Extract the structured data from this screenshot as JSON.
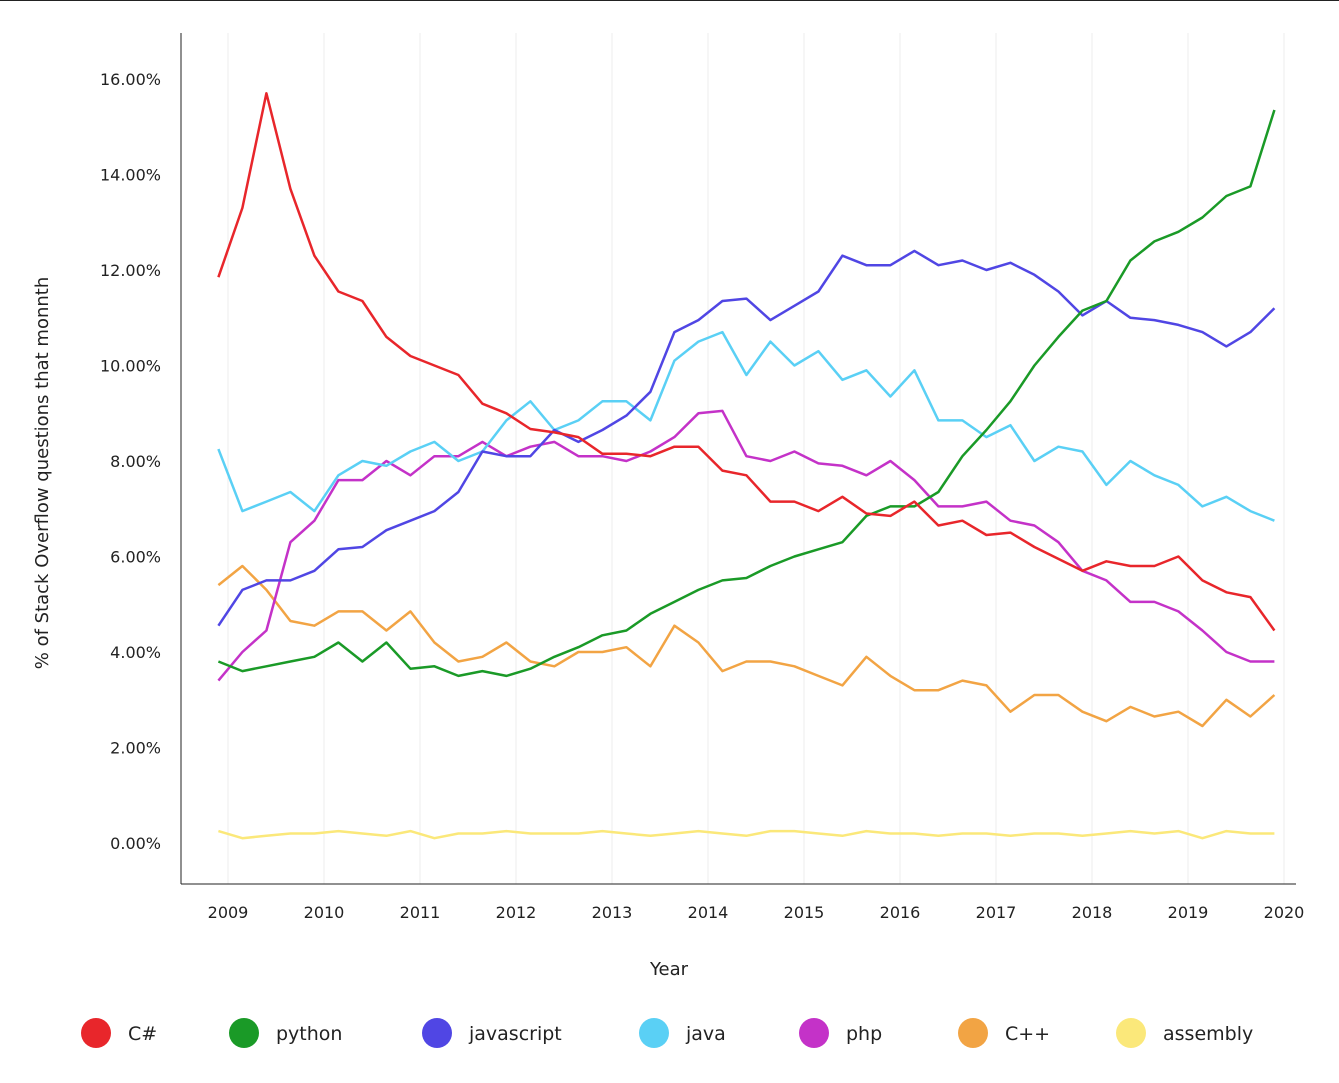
{
  "chart_data": {
    "type": "line",
    "title": "",
    "xlabel": "Year",
    "ylabel": "% of Stack Overflow questions that monnth",
    "ylim": [
      -0.8,
      17
    ],
    "xlim": [
      2008.55,
      2020.1
    ],
    "y_ticks": [
      0,
      2,
      4,
      6,
      8,
      10,
      12,
      14,
      16
    ],
    "y_tick_labels": [
      "0.00%",
      "2.00%",
      "4.00%",
      "6.00%",
      "8.00%",
      "10.00%",
      "12.00%",
      "14.00%",
      "16.00%"
    ],
    "x_ticks": [
      2009,
      2010,
      2011,
      2012,
      2013,
      2014,
      2015,
      2016,
      2017,
      2018,
      2019,
      2020
    ],
    "x_tick_labels": [
      "2009",
      "2010",
      "2011",
      "2012",
      "2013",
      "2014",
      "2015",
      "2016",
      "2017",
      "2018",
      "2019",
      "2020"
    ],
    "grid": "vertical",
    "legend_position": "bottom",
    "x": [
      2008.9,
      2009.15,
      2009.4,
      2009.65,
      2009.9,
      2010.15,
      2010.4,
      2010.65,
      2010.9,
      2011.15,
      2011.4,
      2011.65,
      2011.9,
      2012.15,
      2012.4,
      2012.65,
      2012.9,
      2013.15,
      2013.4,
      2013.65,
      2013.9,
      2014.15,
      2014.4,
      2014.65,
      2014.9,
      2015.15,
      2015.4,
      2015.65,
      2015.9,
      2016.15,
      2016.4,
      2016.65,
      2016.9,
      2017.15,
      2017.4,
      2017.65,
      2017.9,
      2018.15,
      2018.4,
      2018.65,
      2018.9,
      2019.15,
      2019.4,
      2019.65,
      2019.9
    ],
    "series": [
      {
        "name": "C#",
        "color": "#e8262b",
        "values": [
          11.85,
          13.3,
          15.7,
          13.7,
          12.3,
          11.55,
          11.35,
          10.6,
          10.2,
          10.0,
          9.8,
          9.2,
          9.0,
          8.67,
          8.6,
          8.5,
          8.15,
          8.15,
          8.1,
          8.3,
          8.3,
          7.8,
          7.7,
          7.15,
          7.15,
          6.95,
          7.25,
          6.9,
          6.85,
          7.15,
          6.65,
          6.75,
          6.45,
          6.5,
          6.2,
          5.95,
          5.7,
          5.9,
          5.8,
          5.8,
          6.0,
          5.5,
          5.25,
          5.15,
          4.45
        ]
      },
      {
        "name": "python",
        "color": "#1a9a27",
        "values": [
          3.8,
          3.6,
          3.7,
          3.8,
          3.9,
          4.2,
          3.8,
          4.2,
          3.65,
          3.7,
          3.5,
          3.6,
          3.5,
          3.65,
          3.9,
          4.1,
          4.35,
          4.45,
          4.8,
          5.05,
          5.3,
          5.5,
          5.55,
          5.8,
          6.0,
          6.15,
          6.3,
          6.85,
          7.05,
          7.05,
          7.35,
          8.1,
          8.65,
          9.25,
          10.0,
          10.6,
          11.15,
          11.35,
          12.2,
          12.6,
          12.8,
          13.1,
          13.55,
          13.75,
          15.35
        ]
      },
      {
        "name": "javascript",
        "color": "#5046e4",
        "values": [
          4.55,
          5.3,
          5.5,
          5.5,
          5.7,
          6.15,
          6.2,
          6.55,
          6.75,
          6.95,
          7.35,
          8.2,
          8.1,
          8.1,
          8.65,
          8.4,
          8.65,
          8.95,
          9.45,
          10.7,
          10.95,
          11.35,
          11.4,
          10.95,
          11.25,
          11.55,
          12.3,
          12.1,
          12.1,
          12.4,
          12.1,
          12.2,
          12.0,
          12.15,
          11.9,
          11.55,
          11.05,
          11.35,
          11.0,
          10.95,
          10.85,
          10.7,
          10.4,
          10.7,
          11.2
        ]
      },
      {
        "name": "java",
        "color": "#5ad0f5",
        "values": [
          8.25,
          6.95,
          7.15,
          7.35,
          6.95,
          7.7,
          8.0,
          7.9,
          8.2,
          8.4,
          8.0,
          8.2,
          8.85,
          9.25,
          8.65,
          8.85,
          9.25,
          9.25,
          8.85,
          10.1,
          10.5,
          10.7,
          9.8,
          10.5,
          10.0,
          10.3,
          9.7,
          9.9,
          9.35,
          9.9,
          8.85,
          8.85,
          8.5,
          8.75,
          8.0,
          8.3,
          8.2,
          7.5,
          8.0,
          7.7,
          7.5,
          7.05,
          7.25,
          6.95,
          6.75
        ]
      },
      {
        "name": "php",
        "color": "#c432c8",
        "values": [
          3.4,
          4.0,
          4.45,
          6.3,
          6.75,
          7.6,
          7.6,
          8.0,
          7.7,
          8.1,
          8.1,
          8.4,
          8.1,
          8.3,
          8.4,
          8.1,
          8.1,
          8.0,
          8.2,
          8.5,
          9.0,
          9.05,
          8.1,
          8.0,
          8.2,
          7.95,
          7.9,
          7.7,
          8.0,
          7.6,
          7.05,
          7.05,
          7.15,
          6.75,
          6.65,
          6.3,
          5.7,
          5.5,
          5.05,
          5.05,
          4.85,
          4.45,
          4.0,
          3.8,
          3.8
        ]
      },
      {
        "name": "C++",
        "color": "#f2a444",
        "values": [
          5.4,
          5.8,
          5.3,
          4.65,
          4.55,
          4.85,
          4.85,
          4.45,
          4.85,
          4.2,
          3.8,
          3.9,
          4.2,
          3.8,
          3.7,
          4.0,
          4.0,
          4.1,
          3.7,
          4.55,
          4.2,
          3.6,
          3.8,
          3.8,
          3.7,
          3.5,
          3.3,
          3.9,
          3.5,
          3.2,
          3.2,
          3.4,
          3.3,
          2.75,
          3.1,
          3.1,
          2.75,
          2.55,
          2.85,
          2.65,
          2.75,
          2.45,
          3.0,
          2.65,
          3.1
        ]
      },
      {
        "name": "assembly",
        "color": "#fbe87a",
        "values": [
          0.25,
          0.1,
          0.15,
          0.2,
          0.2,
          0.25,
          0.2,
          0.15,
          0.25,
          0.1,
          0.2,
          0.2,
          0.25,
          0.2,
          0.2,
          0.2,
          0.25,
          0.2,
          0.15,
          0.2,
          0.25,
          0.2,
          0.15,
          0.25,
          0.25,
          0.2,
          0.15,
          0.25,
          0.2,
          0.2,
          0.15,
          0.2,
          0.2,
          0.15,
          0.2,
          0.2,
          0.15,
          0.2,
          0.25,
          0.2,
          0.25,
          0.1,
          0.25,
          0.2,
          0.2
        ]
      }
    ]
  }
}
